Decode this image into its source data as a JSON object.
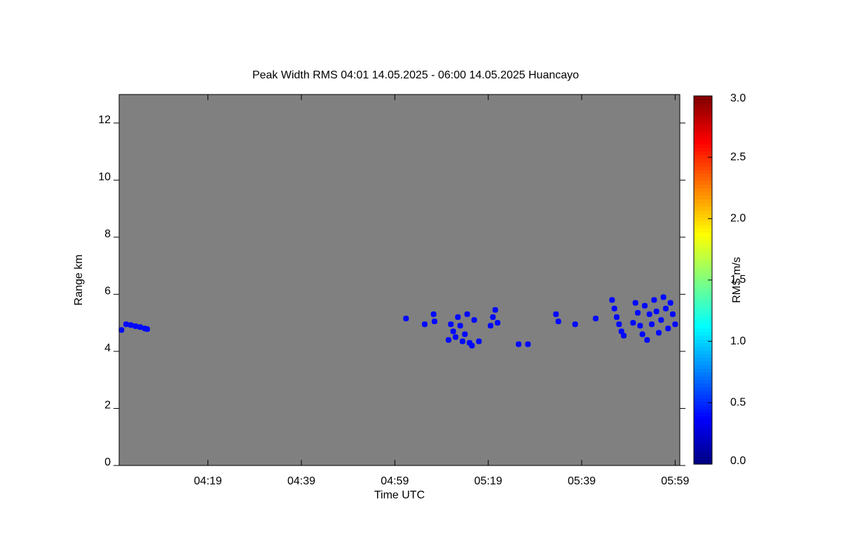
{
  "chart_data": {
    "type": "heatmap",
    "title": "Peak Width RMS   04:01 14.05.2025 - 06:00 14.05.2025 Huancayo",
    "x_label": "Time UTC",
    "y_label": "Range km",
    "colorbar_label": "RMS m/s",
    "colormap": "jet",
    "xlim": [
      240,
      360
    ],
    "xticks": [
      {
        "value": 259,
        "label": "04:19"
      },
      {
        "value": 279,
        "label": "04:39"
      },
      {
        "value": 299,
        "label": "04:59"
      },
      {
        "value": 319,
        "label": "05:19"
      },
      {
        "value": 339,
        "label": "05:39"
      },
      {
        "value": 359,
        "label": "05:59"
      }
    ],
    "ylim": [
      0,
      13
    ],
    "yticks": [
      0,
      2,
      4,
      6,
      8,
      10,
      12
    ],
    "clim": [
      0,
      3
    ],
    "cticks": [
      {
        "value": 0,
        "label": "0.0"
      },
      0.5,
      {
        "value": 1,
        "label": "1.0"
      },
      1.5,
      {
        "value": 2,
        "label": "2.0"
      },
      2.5,
      {
        "value": 3,
        "label": "3.0"
      }
    ],
    "x": [
      240.5,
      241.5,
      242.5,
      243.5,
      244.5,
      245.5,
      246,
      301.4,
      305.4,
      307.3,
      307.5,
      310.5,
      311,
      311.5,
      312,
      312.5,
      313,
      313.5,
      314,
      314.5,
      315,
      315.5,
      316,
      317,
      319.5,
      320,
      320.5,
      321,
      325.5,
      327.5,
      333.5,
      334,
      337.6,
      342,
      345.5,
      346,
      346.5,
      347,
      347.5,
      348,
      350,
      350.5,
      351,
      351.5,
      352,
      352.5,
      353,
      353.5,
      354,
      354.5,
      355,
      355.5,
      356,
      356.5,
      357,
      357.5,
      358,
      358.5,
      359
    ],
    "y": [
      4.75,
      4.95,
      4.92,
      4.88,
      4.85,
      4.8,
      4.78,
      5.15,
      4.95,
      5.3,
      5.05,
      4.4,
      4.95,
      4.7,
      4.5,
      5.2,
      4.9,
      4.35,
      4.6,
      5.3,
      4.3,
      4.2,
      5.1,
      4.35,
      4.9,
      5.2,
      5.45,
      5.0,
      4.25,
      4.25,
      5.3,
      5.05,
      4.95,
      5.15,
      5.8,
      5.5,
      5.2,
      4.95,
      4.7,
      4.55,
      5.0,
      5.7,
      5.35,
      4.9,
      4.6,
      5.6,
      4.4,
      5.3,
      4.95,
      5.8,
      5.4,
      4.65,
      5.1,
      5.9,
      5.5,
      4.8,
      5.7,
      5.3,
      4.95
    ],
    "values": [
      0.4,
      0.4,
      0.4,
      0.4,
      0.4,
      0.4,
      0.4,
      0.4,
      0.4,
      0.4,
      0.4,
      0.4,
      0.4,
      0.4,
      0.4,
      0.4,
      0.4,
      0.4,
      0.4,
      0.4,
      0.4,
      0.4,
      0.4,
      0.4,
      0.4,
      0.4,
      0.4,
      0.4,
      0.4,
      0.4,
      0.4,
      0.4,
      0.4,
      0.4,
      0.4,
      0.4,
      0.4,
      0.4,
      0.4,
      0.4,
      0.4,
      0.4,
      0.4,
      0.4,
      0.4,
      0.4,
      0.4,
      0.4,
      0.4,
      0.4,
      0.4,
      0.4,
      0.4,
      0.4,
      0.4,
      0.4,
      0.4,
      0.4,
      0.4
    ]
  }
}
